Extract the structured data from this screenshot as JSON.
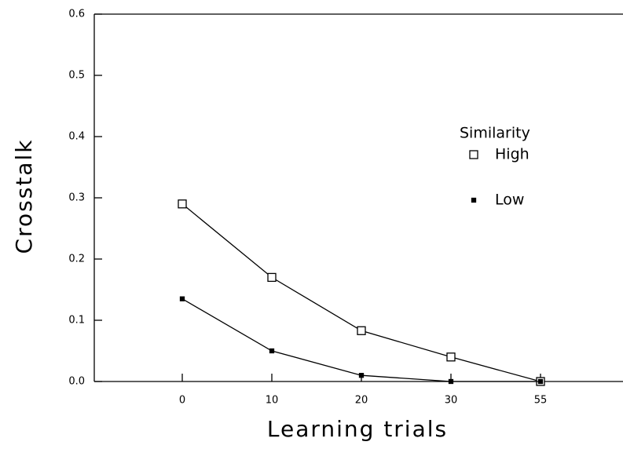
{
  "chart_data": {
    "type": "line",
    "x_label": "Learning trials",
    "y_label": "Crosstalk",
    "categories": [
      "0",
      "10",
      "20",
      "30",
      "55"
    ],
    "series": [
      {
        "name": "High",
        "color": "#000000",
        "marker": "square-open",
        "values": [
          0.29,
          0.17,
          0.083,
          0.04,
          0.0
        ]
      },
      {
        "name": "Low",
        "color": "#000000",
        "marker": "square-filled",
        "values": [
          0.135,
          0.05,
          0.01,
          0.0,
          0.0
        ]
      }
    ],
    "legend_title": "Similarity",
    "ylim": [
      0,
      0.6
    ],
    "yticks": [
      {
        "value": 0,
        "label": "0.0"
      },
      0.1,
      0.2,
      0.3,
      0.4,
      0.5,
      0.6
    ],
    "grid": false
  }
}
